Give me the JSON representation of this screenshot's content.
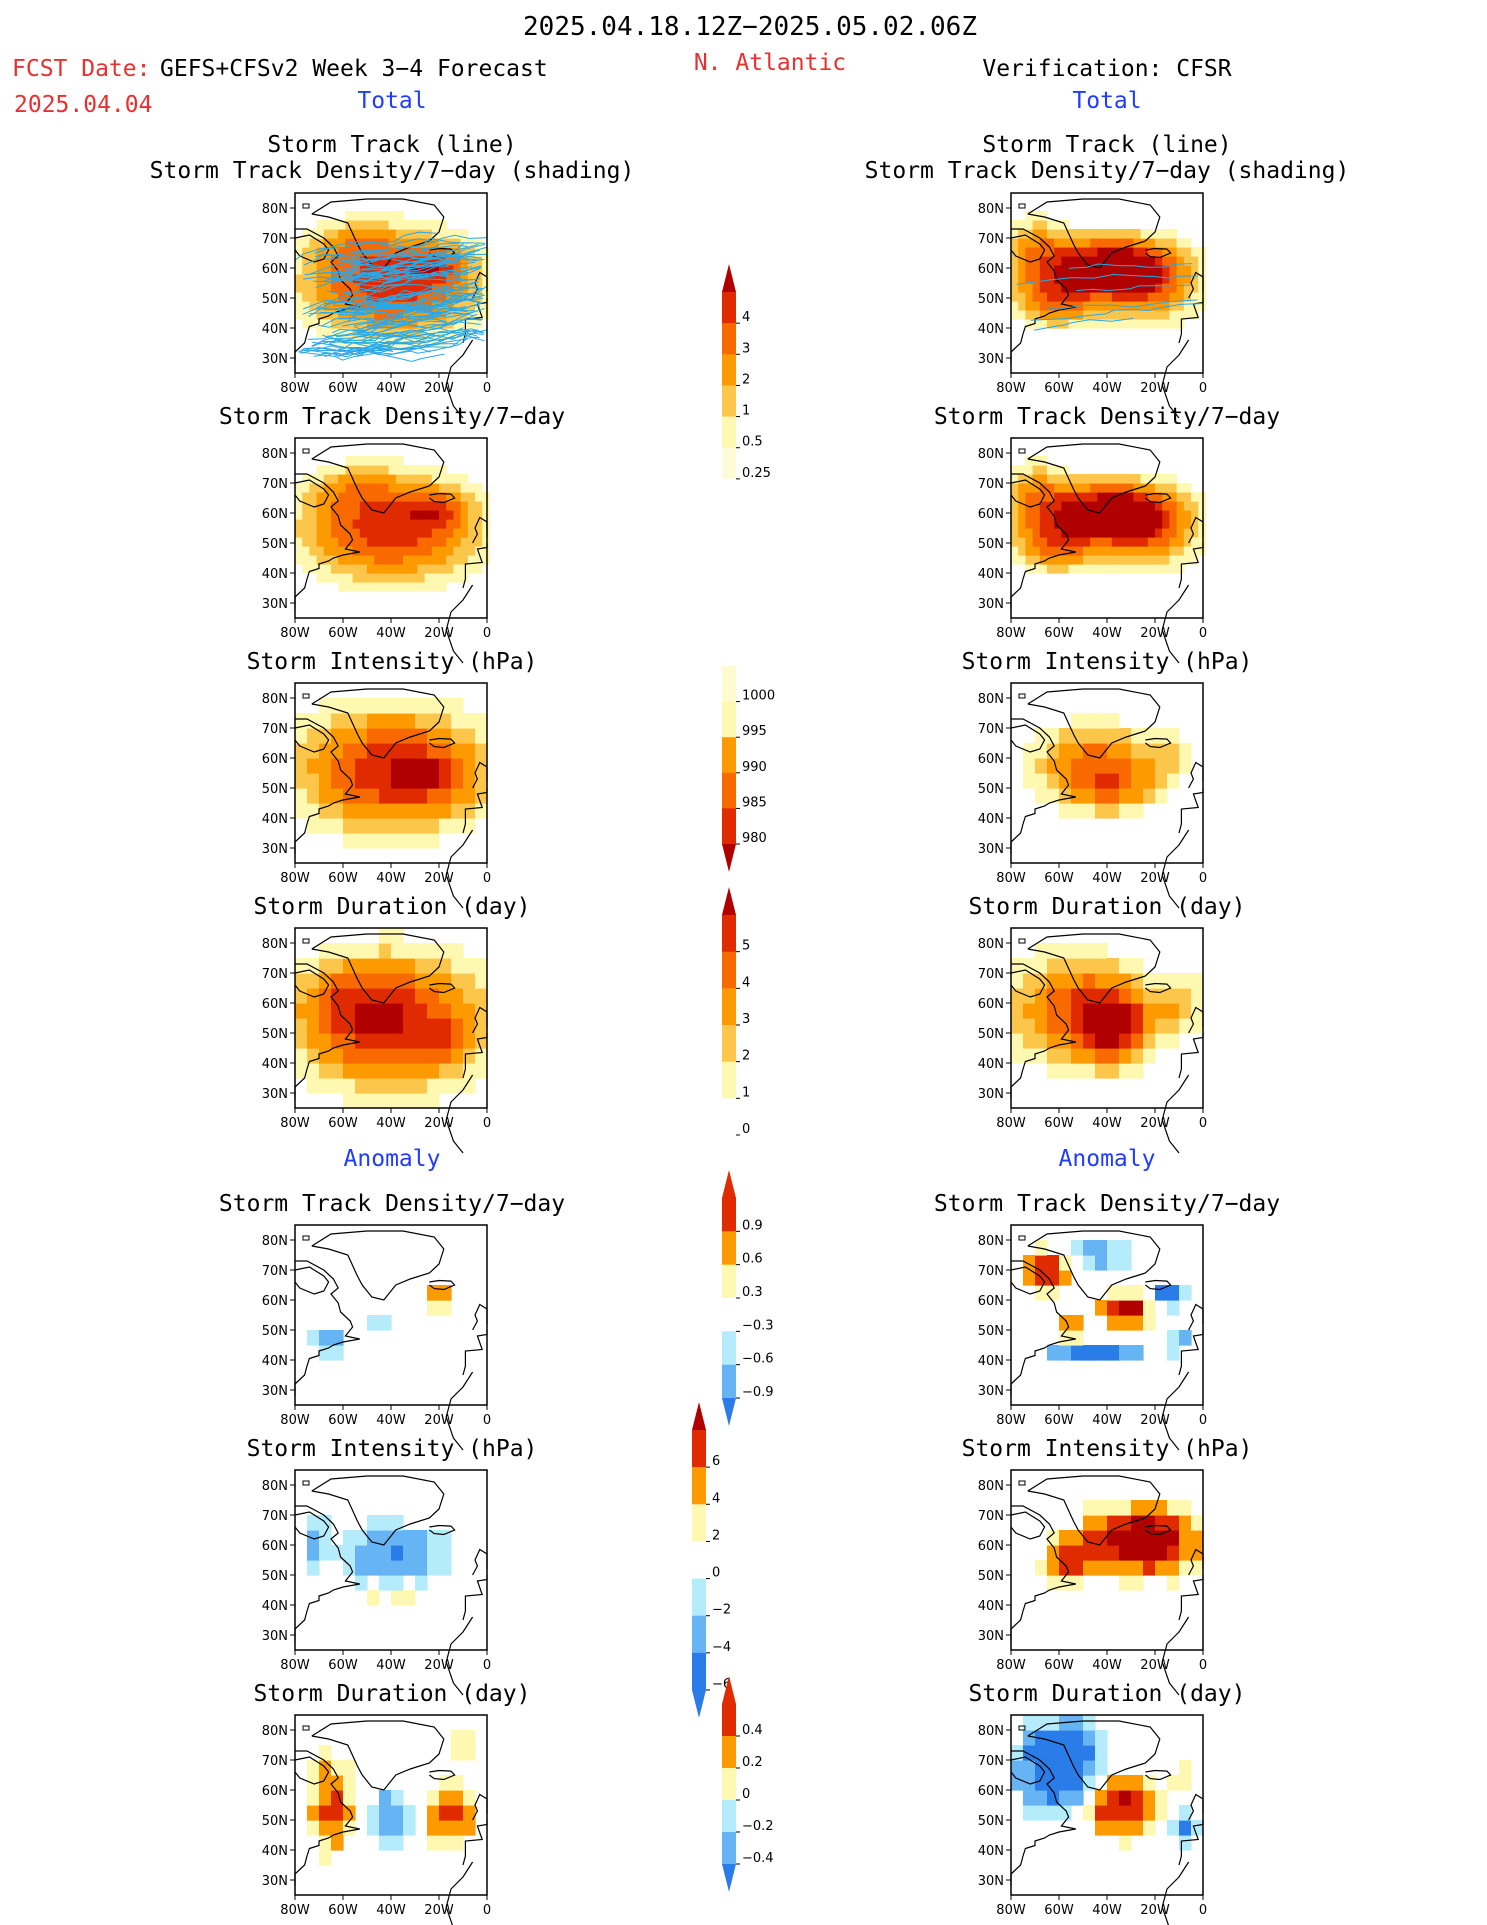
{
  "header": {
    "period": "2025.04.18.12Z−2025.05.02.06Z",
    "fcst_label": "FCST Date:",
    "model": "GEFS+CFSv2 Week 3−4 Forecast",
    "fcst_date": "2025.04.04",
    "region": "N. Atlantic",
    "verification": "Verification: CFSR"
  },
  "columns": {
    "left_total": "Total",
    "right_total": "Total",
    "left_anomaly": "Anomaly",
    "right_anomaly": "Anomaly"
  },
  "titles": {
    "track_line": "Storm Track (line)",
    "track_shading": "Storm Track Density/7−day (shading)",
    "density": "Storm Track Density/7−day",
    "intensity": "Storm Intensity (hPa)",
    "duration": "Storm Duration (day)"
  },
  "axes": {
    "lon_ticks": [
      "80W",
      "60W",
      "40W",
      "20W",
      "0"
    ],
    "lat_ticks": [
      "80N",
      "70N",
      "60N",
      "50N",
      "40N",
      "30N"
    ]
  },
  "colorbars": {
    "density_total": [
      "4",
      "3",
      "2",
      "1",
      "0.5",
      "0.25"
    ],
    "intensity_total": [
      "1000",
      "995",
      "990",
      "985",
      "980"
    ],
    "duration_total": [
      "5",
      "4",
      "3",
      "2",
      "1",
      "0"
    ],
    "density_anom": [
      "0.9",
      "0.6",
      "0.3",
      "−0.3",
      "−0.6",
      "−0.9"
    ],
    "intensity_anom": [
      "6",
      "4",
      "2",
      "0",
      "−2",
      "−4",
      "−6"
    ],
    "duration_anom": [
      "0.4",
      "0.2",
      "0",
      "−0.2",
      "−0.4"
    ]
  },
  "colors": {
    "pale_yellow": "#fff8b0",
    "light_orange": "#fcc64a",
    "orange": "#fc9a00",
    "dark_orange": "#f86a00",
    "red": "#e02a00",
    "dark_red": "#b00000",
    "light_blue": "#b4ecfc",
    "mid_blue": "#66b4f4",
    "blue": "#2a7de8",
    "track_blue": "#2aa8e8"
  },
  "chart_data": [
    {
      "type": "heatmap",
      "panel": "forecast-total-track-density-with-tracks",
      "title": "Storm Track Density/7−day (shading)",
      "xlabel": "",
      "ylabel": "",
      "legend_levels": [
        0.25,
        0.5,
        1,
        2,
        3,
        4
      ]
    },
    {
      "type": "heatmap",
      "panel": "forecast-total-track-density",
      "title": "Storm Track Density/7−day",
      "legend_levels": [
        0.25,
        0.5,
        1,
        2,
        3,
        4
      ]
    },
    {
      "type": "heatmap",
      "panel": "forecast-total-intensity",
      "title": "Storm Intensity (hPa)",
      "legend_levels": [
        1000,
        995,
        990,
        985,
        980
      ]
    },
    {
      "type": "heatmap",
      "panel": "forecast-total-duration",
      "title": "Storm Duration (day)",
      "legend_levels": [
        0,
        1,
        2,
        3,
        4,
        5
      ]
    },
    {
      "type": "heatmap",
      "panel": "forecast-anomaly-track-density",
      "title": "Storm Track Density/7−day",
      "legend_levels": [
        -0.9,
        -0.6,
        -0.3,
        0.3,
        0.6,
        0.9
      ]
    },
    {
      "type": "heatmap",
      "panel": "forecast-anomaly-intensity",
      "title": "Storm Intensity (hPa)",
      "legend_levels": [
        -6,
        -4,
        -2,
        0,
        2,
        4,
        6
      ]
    },
    {
      "type": "heatmap",
      "panel": "forecast-anomaly-duration",
      "title": "Storm Duration (day)",
      "legend_levels": [
        -0.4,
        -0.2,
        0,
        0.2,
        0.4
      ]
    },
    {
      "type": "heatmap",
      "panel": "cfsr-total-track-density-with-tracks",
      "title": "Storm Track Density/7−day (shading)",
      "legend_levels": [
        0.25,
        0.5,
        1,
        2,
        3,
        4
      ]
    },
    {
      "type": "heatmap",
      "panel": "cfsr-total-track-density",
      "title": "Storm Track Density/7−day",
      "legend_levels": [
        0.25,
        0.5,
        1,
        2,
        3,
        4
      ]
    },
    {
      "type": "heatmap",
      "panel": "cfsr-total-intensity",
      "title": "Storm Intensity (hPa)",
      "legend_levels": [
        1000,
        995,
        990,
        985,
        980
      ]
    },
    {
      "type": "heatmap",
      "panel": "cfsr-total-duration",
      "title": "Storm Duration (day)",
      "legend_levels": [
        0,
        1,
        2,
        3,
        4,
        5
      ]
    },
    {
      "type": "heatmap",
      "panel": "cfsr-anomaly-track-density",
      "title": "Storm Track Density/7−day",
      "legend_levels": [
        -0.9,
        -0.6,
        -0.3,
        0.3,
        0.6,
        0.9
      ]
    },
    {
      "type": "heatmap",
      "panel": "cfsr-anomaly-intensity",
      "title": "Storm Intensity (hPa)",
      "legend_levels": [
        -6,
        -4,
        -2,
        0,
        2,
        4,
        6
      ]
    },
    {
      "type": "heatmap",
      "panel": "cfsr-anomaly-duration",
      "title": "Storm Duration (day)",
      "legend_levels": [
        -0.4,
        -0.2,
        0,
        0.2,
        0.4
      ]
    }
  ]
}
